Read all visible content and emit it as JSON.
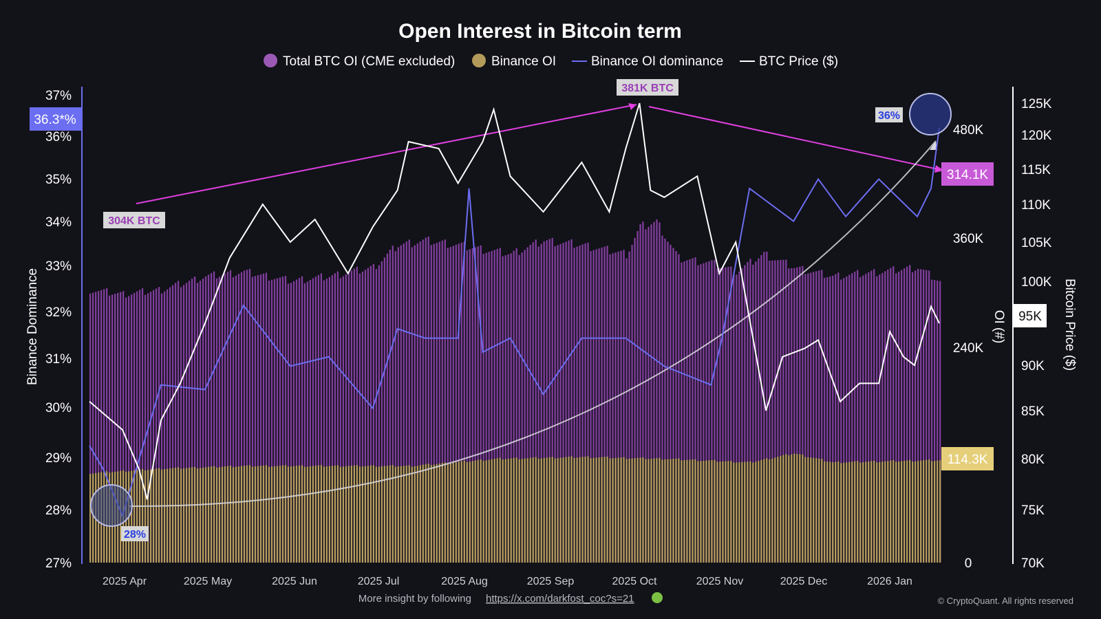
{
  "title": "Open Interest in Bitcoin term",
  "legend": [
    {
      "label": "Total BTC OI (CME excluded)",
      "marker": "dot",
      "color": "#9b59b6"
    },
    {
      "label": "Binance OI",
      "marker": "dot",
      "color": "#b39b5a"
    },
    {
      "label": "Binance OI dominance",
      "marker": "line",
      "color": "#6b6ef0"
    },
    {
      "label": "BTC Price ($)",
      "marker": "line",
      "color": "#ffffff"
    }
  ],
  "colors": {
    "background": "#121219",
    "total_oi": "#8e44ad",
    "binance_oi": "#b8a35a",
    "dominance": "#6b6ef0",
    "price": "#ffffff",
    "trend": "#e040e0"
  },
  "left_axis": {
    "title": "Binance Dominance",
    "ticks": [
      "37%",
      "36%",
      "35%",
      "34%",
      "33%",
      "32%",
      "31%",
      "30%",
      "29%",
      "28%",
      "27%"
    ],
    "badge": "36.3*%"
  },
  "oi_axis": {
    "title": "OI (#)",
    "ticks": [
      "480K",
      "360K",
      "240K",
      "0"
    ],
    "badge_total": "314.1K",
    "badge_binance": "114.3K"
  },
  "price_axis": {
    "title": "Bitcoin Price ($)",
    "ticks": [
      "125K",
      "120K",
      "115K",
      "110K",
      "105K",
      "100K",
      "90K",
      "85K",
      "80K",
      "75K",
      "70K"
    ],
    "badge": "95K"
  },
  "x_ticks": [
    "2025 Apr",
    "2025 May",
    "2025 Jun",
    "2025 Jul",
    "2025 Aug",
    "2025 Sep",
    "2025 Oct",
    "2025 Nov",
    "2025 Dec",
    "2026 Jan"
  ],
  "annotations": {
    "low_oi": "304K BTC",
    "peak_oi": "381K BTC",
    "dom_low": "28%",
    "dom_high": "36%"
  },
  "footer": {
    "text": "More insight by following",
    "link": "https://x.com/darkfost_coc?s=21",
    "copyright": "© CryptoQuant. All rights reserved"
  },
  "chart_data": {
    "type": "bar",
    "title": "Open Interest in Bitcoin term",
    "x_range": [
      "2025-03-20",
      "2026-01-23"
    ],
    "series": [
      {
        "name": "Total BTC OI (CME excluded)",
        "type": "bar",
        "axis": "OI (#)",
        "unit": "BTC",
        "dates": [
          "2025-03-20",
          "2025-04-01",
          "2025-04-15",
          "2025-05-01",
          "2025-05-15",
          "2025-06-01",
          "2025-06-15",
          "2025-07-01",
          "2025-07-10",
          "2025-07-20",
          "2025-08-01",
          "2025-08-10",
          "2025-08-20",
          "2025-09-01",
          "2025-09-15",
          "2025-10-01",
          "2025-10-06",
          "2025-10-12",
          "2025-10-20",
          "2025-11-01",
          "2025-11-10",
          "2025-11-20",
          "2025-12-01",
          "2025-12-15",
          "2026-01-01",
          "2026-01-15",
          "2026-01-23"
        ],
        "values": [
          305000,
          300000,
          305000,
          320000,
          325000,
          315000,
          320000,
          330000,
          355000,
          360000,
          355000,
          350000,
          345000,
          360000,
          355000,
          345000,
          375000,
          381000,
          340000,
          335000,
          325000,
          345000,
          330000,
          320000,
          325000,
          330000,
          314100
        ]
      },
      {
        "name": "Binance OI",
        "type": "bar",
        "axis": "OI (#)",
        "unit": "BTC",
        "dates": [
          "2025-03-20",
          "2025-04-15",
          "2025-05-15",
          "2025-06-15",
          "2025-07-15",
          "2025-08-15",
          "2025-09-15",
          "2025-10-15",
          "2025-11-15",
          "2025-12-01",
          "2025-12-15",
          "2026-01-15",
          "2026-01-23"
        ],
        "values": [
          100000,
          105000,
          108000,
          108000,
          108000,
          116000,
          118000,
          116000,
          112000,
          122000,
          112000,
          114000,
          114300
        ]
      },
      {
        "name": "Binance OI dominance",
        "type": "line",
        "axis": "Binance Dominance",
        "unit": "%",
        "dates": [
          "2025-03-20",
          "2025-03-25",
          "2025-04-01",
          "2025-04-05",
          "2025-04-15",
          "2025-05-01",
          "2025-05-15",
          "2025-06-01",
          "2025-06-15",
          "2025-07-01",
          "2025-07-10",
          "2025-07-20",
          "2025-08-01",
          "2025-08-05",
          "2025-08-10",
          "2025-08-20",
          "2025-09-01",
          "2025-09-15",
          "2025-10-01",
          "2025-10-15",
          "2025-11-01",
          "2025-11-05",
          "2025-11-15",
          "2025-12-01",
          "2025-12-10",
          "2025-12-20",
          "2026-01-01",
          "2026-01-15",
          "2026-01-20",
          "2026-01-23"
        ],
        "values": [
          29.5,
          29.0,
          28.0,
          28.8,
          30.8,
          30.7,
          32.5,
          31.2,
          31.4,
          30.3,
          32.0,
          31.8,
          31.8,
          35.0,
          31.5,
          31.8,
          30.6,
          31.8,
          31.8,
          31.2,
          30.8,
          31.8,
          35.0,
          34.3,
          35.2,
          34.4,
          35.2,
          34.4,
          35.0,
          36.3
        ]
      },
      {
        "name": "BTC Price ($)",
        "type": "line",
        "axis": "Bitcoin Price ($)",
        "unit": "USD",
        "dates": [
          "2025-03-20",
          "2025-04-01",
          "2025-04-07",
          "2025-04-10",
          "2025-04-15",
          "2025-04-22",
          "2025-05-01",
          "2025-05-10",
          "2025-05-22",
          "2025-06-01",
          "2025-06-10",
          "2025-06-22",
          "2025-07-01",
          "2025-07-10",
          "2025-07-14",
          "2025-07-25",
          "2025-08-01",
          "2025-08-10",
          "2025-08-14",
          "2025-08-20",
          "2025-09-01",
          "2025-09-15",
          "2025-09-25",
          "2025-10-01",
          "2025-10-06",
          "2025-10-10",
          "2025-10-15",
          "2025-10-27",
          "2025-11-04",
          "2025-11-10",
          "2025-11-21",
          "2025-11-27",
          "2025-12-05",
          "2025-12-10",
          "2025-12-18",
          "2025-12-25",
          "2026-01-01",
          "2026-01-05",
          "2026-01-10",
          "2026-01-14",
          "2026-01-20",
          "2026-01-23"
        ],
        "values": [
          86000,
          83000,
          79000,
          76000,
          84000,
          88000,
          95000,
          103000,
          110000,
          105000,
          108000,
          101000,
          107000,
          112000,
          119000,
          118000,
          113000,
          119000,
          124000,
          114000,
          109000,
          116000,
          109000,
          118000,
          125000,
          112000,
          111000,
          114000,
          101000,
          105000,
          85000,
          91000,
          92000,
          93000,
          86000,
          88000,
          88000,
          94000,
          91000,
          90000,
          97000,
          95000
        ]
      }
    ],
    "axes": {
      "binance_dominance": {
        "label": "Binance Dominance",
        "range": [
          27,
          37
        ],
        "unit": "%"
      },
      "oi": {
        "label": "OI (#)",
        "range": [
          0,
          570000
        ]
      },
      "price": {
        "label": "Bitcoin Price ($)",
        "range": [
          70000,
          127000
        ]
      }
    },
    "annotations": [
      {
        "text": "304K BTC",
        "date": "2025-04-01",
        "value": 304000
      },
      {
        "text": "381K BTC",
        "date": "2025-10-06",
        "value": 381000
      },
      {
        "text": "28%",
        "date": "2025-03-25"
      },
      {
        "text": "36%",
        "date": "2026-01-23"
      }
    ],
    "grid": false,
    "legend_position": "top-center"
  }
}
